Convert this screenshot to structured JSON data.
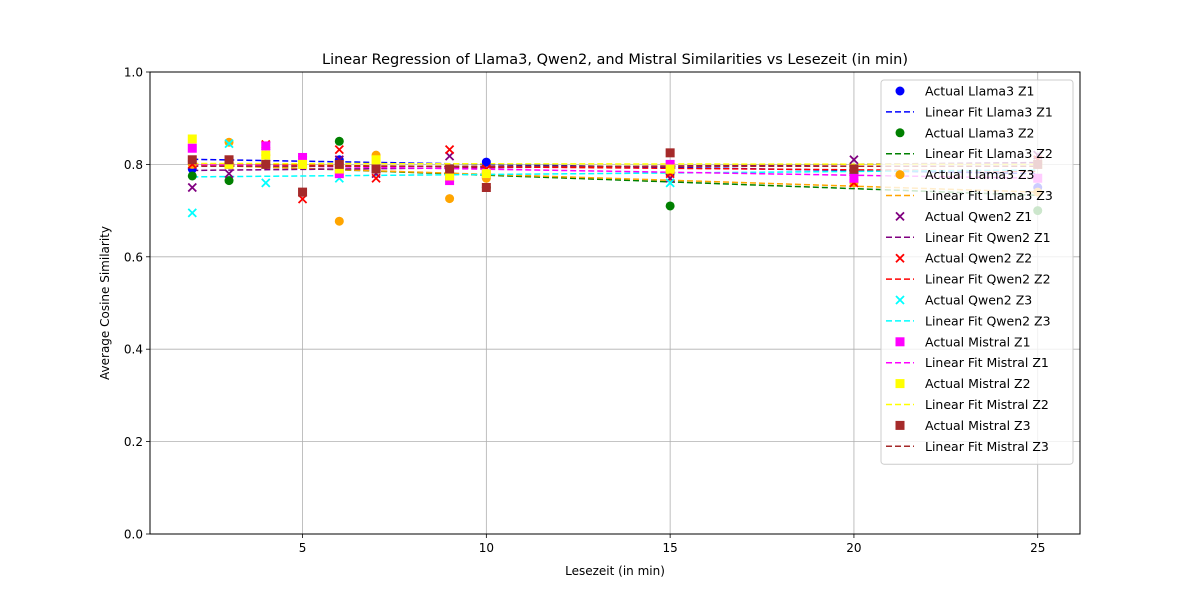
{
  "chart_data": {
    "type": "scatter",
    "title": "Linear Regression of Llama3, Qwen2, and Mistral Similarities vs Lesezeit (in min)",
    "xlabel": "Lesezeit (in min)",
    "ylabel": "Average Cosine Similarity",
    "xlim": [
      0.85,
      26.15
    ],
    "ylim": [
      0.0,
      1.0
    ],
    "xticks": [
      5,
      10,
      15,
      20,
      25
    ],
    "yticks": [
      0.0,
      0.2,
      0.4,
      0.6,
      0.8,
      1.0
    ],
    "xtick_labels": [
      "5",
      "10",
      "15",
      "20",
      "25"
    ],
    "ytick_labels": [
      "0.0",
      "0.2",
      "0.4",
      "0.6",
      "0.8",
      "1.0"
    ],
    "grid": true,
    "legend_position": "top-right",
    "x": [
      2,
      3,
      4,
      5,
      6,
      7,
      9,
      10,
      15,
      20,
      25
    ],
    "series": [
      {
        "name": "Llama3 Z1",
        "scatter_label": "Actual Llama3 Z1",
        "fit_label": "Linear Fit Llama3 Z1",
        "color": "#0000ff",
        "marker": "circle",
        "values": [
          0.79,
          0.8,
          0.8,
          0.8,
          0.81,
          0.79,
          0.79,
          0.805,
          0.78,
          0.78,
          0.75
        ],
        "fit": [
          0.811,
          0.78
        ]
      },
      {
        "name": "Llama3 Z2",
        "scatter_label": "Actual Llama3 Z2",
        "fit_label": "Linear Fit Llama3 Z2",
        "color": "#008000",
        "marker": "circle",
        "values": [
          0.775,
          0.765,
          0.8,
          0.8,
          0.85,
          0.79,
          0.78,
          0.75,
          0.71,
          0.78,
          0.7
        ],
        "fit": [
          0.8,
          0.733
        ]
      },
      {
        "name": "Llama3 Z3",
        "scatter_label": "Actual Llama3 Z3",
        "fit_label": "Linear Fit Llama3 Z3",
        "color": "#ffa500",
        "marker": "circle",
        "values": [
          0.8,
          0.848,
          0.82,
          0.8,
          0.677,
          0.82,
          0.726,
          0.77,
          0.78,
          0.76,
          0.74
        ],
        "fit": [
          0.799,
          0.74
        ]
      },
      {
        "name": "Qwen2 Z1",
        "scatter_label": "Actual Qwen2 Z1",
        "fit_label": "Linear Fit Qwen2 Z1",
        "color": "#800080",
        "marker": "x",
        "values": [
          0.75,
          0.78,
          0.84,
          0.81,
          0.81,
          0.78,
          0.818,
          0.79,
          0.77,
          0.81,
          0.82
        ],
        "fit": [
          0.787,
          0.804
        ]
      },
      {
        "name": "Qwen2 Z2",
        "scatter_label": "Actual Qwen2 Z2",
        "fit_label": "Linear Fit Qwen2 Z2",
        "color": "#ff0000",
        "marker": "x",
        "values": [
          0.8,
          0.8,
          0.843,
          0.725,
          0.832,
          0.77,
          0.832,
          0.79,
          0.78,
          0.76,
          0.81
        ],
        "fit": [
          0.8,
          0.785
        ]
      },
      {
        "name": "Qwen2 Z3",
        "scatter_label": "Actual Qwen2 Z3",
        "fit_label": "Linear Fit Qwen2 Z3",
        "color": "#00ffff",
        "marker": "x",
        "values": [
          0.695,
          0.845,
          0.76,
          0.8,
          0.77,
          0.79,
          0.77,
          0.78,
          0.76,
          0.79,
          0.8
        ],
        "fit": [
          0.773,
          0.788
        ]
      },
      {
        "name": "Mistral Z1",
        "scatter_label": "Actual Mistral Z1",
        "fit_label": "Linear Fit Mistral Z1",
        "color": "#ff00ff",
        "marker": "square",
        "values": [
          0.835,
          0.8,
          0.84,
          0.815,
          0.78,
          0.79,
          0.765,
          0.78,
          0.8,
          0.77,
          0.77
        ],
        "fit": [
          0.8,
          0.77
        ]
      },
      {
        "name": "Mistral Z2",
        "scatter_label": "Actual Mistral Z2",
        "fit_label": "Linear Fit Mistral Z2",
        "color": "#ffff00",
        "marker": "square",
        "values": [
          0.855,
          0.8,
          0.82,
          0.8,
          0.79,
          0.81,
          0.775,
          0.78,
          0.79,
          0.79,
          0.8
        ],
        "fit": [
          0.802,
          0.8
        ]
      },
      {
        "name": "Mistral Z3",
        "scatter_label": "Actual Mistral Z3",
        "fit_label": "Linear Fit Mistral Z3",
        "color": "#a52a2a",
        "marker": "square",
        "values": [
          0.81,
          0.81,
          0.8,
          0.74,
          0.8,
          0.79,
          0.79,
          0.75,
          0.825,
          0.79,
          0.8
        ],
        "fit": [
          0.796,
          0.796
        ]
      }
    ]
  }
}
